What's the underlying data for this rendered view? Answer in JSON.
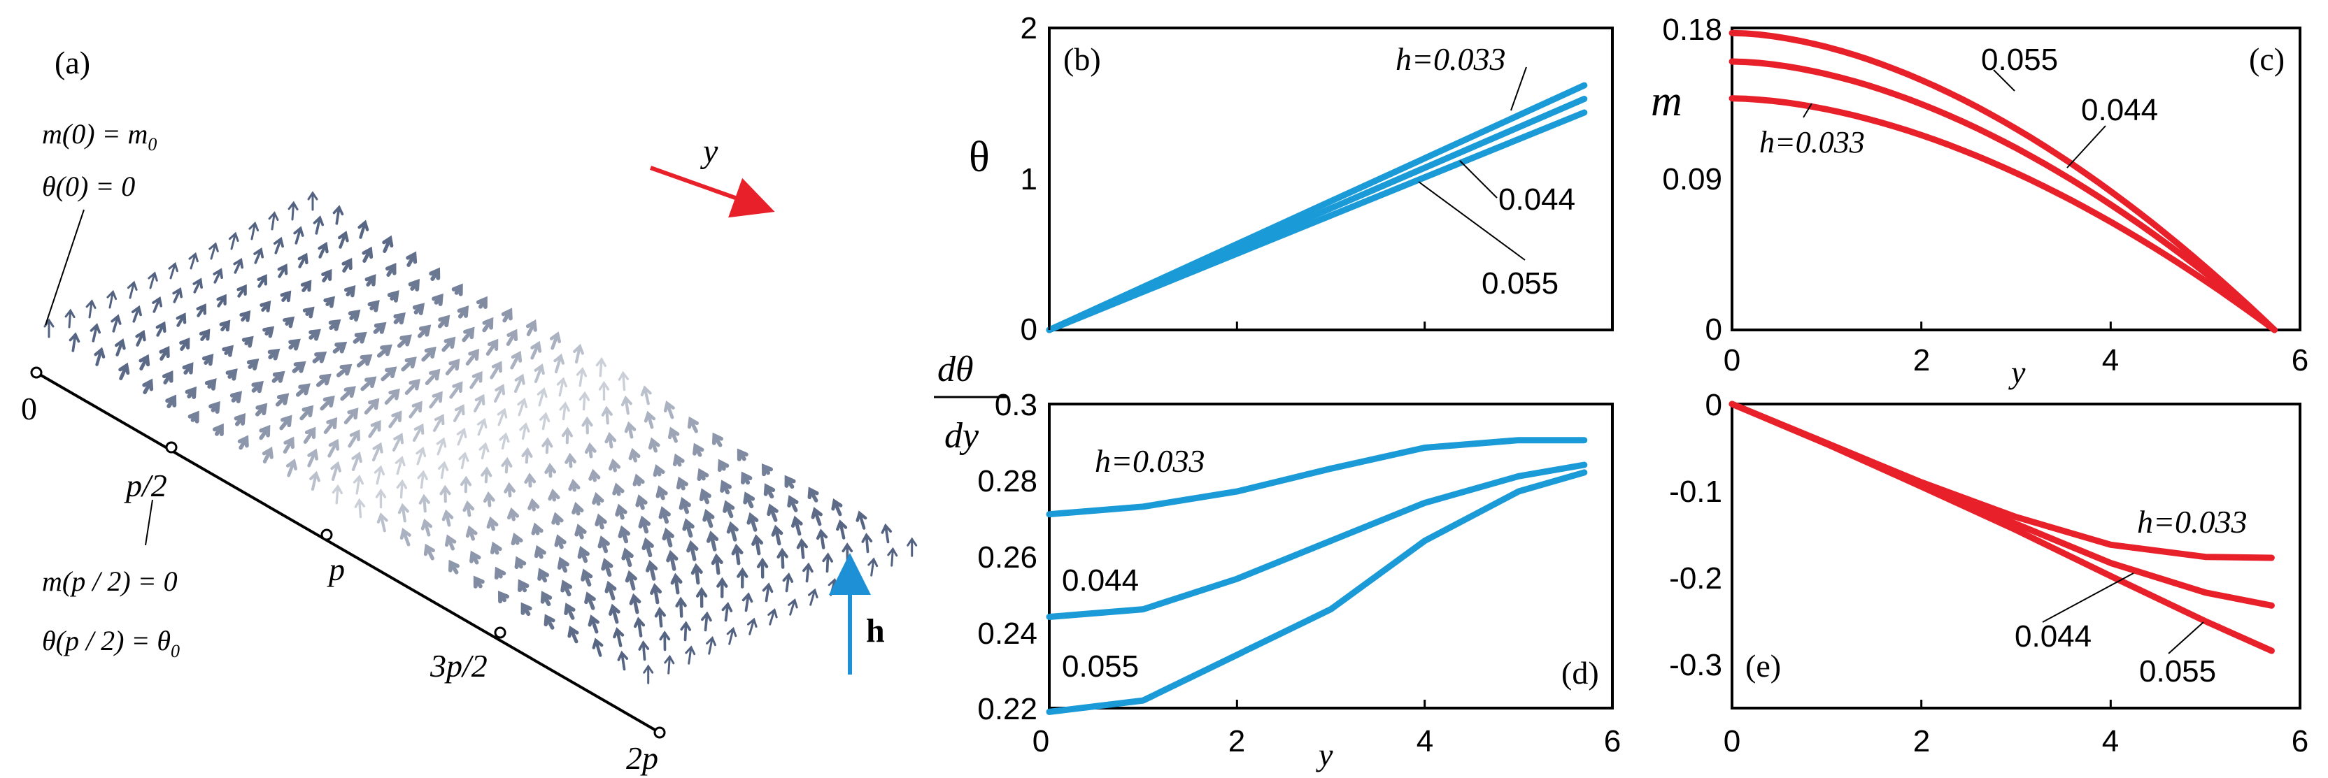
{
  "figure": {
    "panel_a": {
      "label": "(a)",
      "y_label": "y",
      "h_label": "h",
      "eq_top_1": "m(0) = m",
      "eq_top_1_sub": "0",
      "eq_top_2": "θ(0) = 0",
      "eq_mid_1": "m(p / 2) = 0",
      "eq_mid_2": "θ(p / 2) = θ",
      "eq_mid_2_sub": "0",
      "axis_ticks": [
        "0",
        "p/2",
        "p",
        "3p/2",
        "2p"
      ],
      "colors": {
        "y_arrow": "#e8202a",
        "h_arrow": "#1e90d6",
        "spins": "#4a5a7a"
      }
    }
  },
  "chart_data": [
    {
      "panel": "(b)",
      "type": "line",
      "color": "#1a9ad6",
      "ylabel": "θ",
      "xlabel": "",
      "xlim": [
        0,
        6
      ],
      "ylim": [
        0,
        2
      ],
      "xticks": [],
      "yticks": [
        "0",
        "1",
        "2"
      ],
      "series": [
        {
          "name": "h=0.033",
          "x": [
            0,
            5.7
          ],
          "y": [
            0,
            1.62
          ]
        },
        {
          "name": "0.044",
          "x": [
            0,
            5.7
          ],
          "y": [
            0,
            1.53
          ]
        },
        {
          "name": "0.055",
          "x": [
            0,
            5.7
          ],
          "y": [
            0,
            1.44
          ]
        }
      ],
      "labels": [
        "h=0.033",
        "0.044",
        "0.055"
      ]
    },
    {
      "panel": "(c)",
      "type": "line",
      "color": "#e8202a",
      "ylabel": "m",
      "xlabel": "y",
      "xlim": [
        0,
        6
      ],
      "ylim": [
        0,
        0.18
      ],
      "xticks": [
        "0",
        "2",
        "4",
        "6"
      ],
      "yticks": [
        "0",
        "0.09",
        "0.18"
      ],
      "series": [
        {
          "name": "0.055",
          "x": [
            0,
            5.73
          ],
          "y": [
            0.177,
            0
          ]
        },
        {
          "name": "0.044",
          "x": [
            0,
            5.73
          ],
          "y": [
            0.16,
            0
          ]
        },
        {
          "name": "h=0.033",
          "x": [
            0,
            5.73
          ],
          "y": [
            0.138,
            0
          ]
        }
      ],
      "labels": [
        "0.055",
        "0.044",
        "h=0.033"
      ]
    },
    {
      "panel": "(d)",
      "type": "line",
      "color": "#1a9ad6",
      "ylabel": "dθ/dy",
      "ylabel_num": "dθ",
      "ylabel_den": "dy",
      "xlabel": "y",
      "xlim": [
        0,
        6
      ],
      "ylim": [
        0.22,
        0.3
      ],
      "xticks": [
        "0",
        "2",
        "4",
        "6"
      ],
      "yticks": [
        "0.22",
        "0.24",
        "0.26",
        "0.28",
        "0.3"
      ],
      "series": [
        {
          "name": "h=0.033",
          "x": [
            0,
            1,
            2,
            3,
            4,
            5,
            5.7
          ],
          "y": [
            0.271,
            0.273,
            0.277,
            0.283,
            0.2885,
            0.2905,
            0.2905
          ]
        },
        {
          "name": "0.044",
          "x": [
            0,
            1,
            2,
            3,
            4,
            5,
            5.7
          ],
          "y": [
            0.244,
            0.246,
            0.254,
            0.264,
            0.274,
            0.281,
            0.284
          ]
        },
        {
          "name": "0.055",
          "x": [
            0,
            1,
            2,
            3,
            4,
            5,
            5.7
          ],
          "y": [
            0.219,
            0.222,
            0.234,
            0.246,
            0.264,
            0.277,
            0.282
          ]
        }
      ],
      "labels": [
        "h=0.033",
        "0.044",
        "0.055"
      ]
    },
    {
      "panel": "(e)",
      "type": "line",
      "color": "#e8202a",
      "ylabel": "",
      "xlabel": "",
      "xlim": [
        0,
        6
      ],
      "ylim": [
        -0.35,
        0
      ],
      "xticks": [
        "0",
        "2",
        "4",
        "6"
      ],
      "yticks": [
        "0",
        "-0.1",
        "-0.2",
        "-0.3"
      ],
      "series": [
        {
          "name": "h=0.033",
          "x": [
            0,
            1,
            2,
            3,
            4,
            5,
            5.7
          ],
          "y": [
            0,
            -0.045,
            -0.09,
            -0.13,
            -0.162,
            -0.176,
            -0.177
          ]
        },
        {
          "name": "0.044",
          "x": [
            0,
            1,
            2,
            3,
            4,
            5,
            5.7
          ],
          "y": [
            0,
            -0.045,
            -0.092,
            -0.138,
            -0.183,
            -0.217,
            -0.232
          ]
        },
        {
          "name": "0.055",
          "x": [
            0,
            1,
            2,
            3,
            4,
            5,
            5.7
          ],
          "y": [
            0,
            -0.046,
            -0.095,
            -0.145,
            -0.198,
            -0.25,
            -0.284
          ]
        }
      ],
      "labels": [
        "h=0.033",
        "0.044",
        "0.055"
      ]
    }
  ]
}
